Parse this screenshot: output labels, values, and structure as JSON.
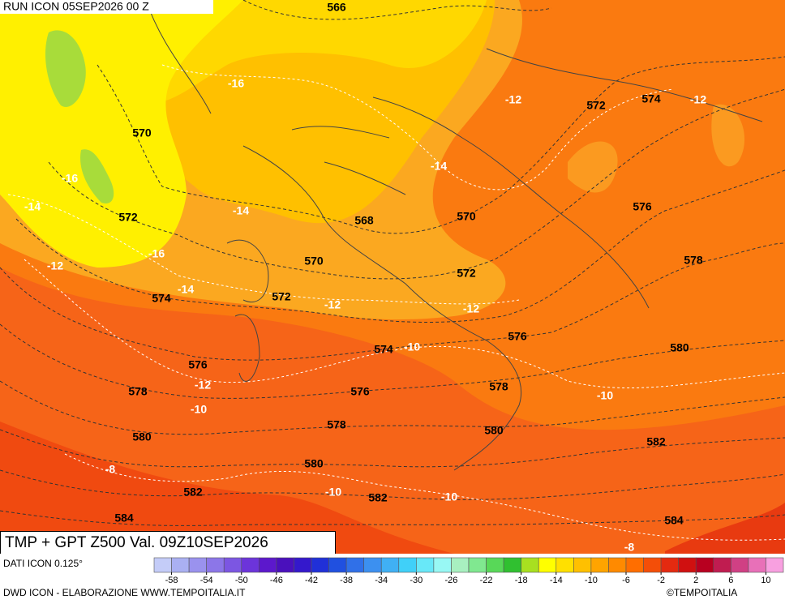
{
  "header": {
    "run": "RUN ICON 05SEP2026 00 Z",
    "title": "TMP + GPT Z500 Val. 09Z10SEP2026"
  },
  "map": {
    "height_labels": [
      566,
      570,
      572,
      574,
      576,
      578,
      580,
      582,
      584,
      568,
      570,
      572,
      570,
      572,
      574,
      576,
      578,
      580,
      582,
      576,
      578,
      580,
      572,
      574,
      576,
      578,
      580,
      582,
      584
    ],
    "temp_labels": [
      -16,
      -16,
      -14,
      -14,
      -12,
      -16,
      -14,
      -12,
      -12,
      -10,
      -8,
      -10,
      -10,
      -10,
      -12,
      -14,
      -12,
      -12,
      -10,
      -8
    ]
  },
  "colorbar": {
    "source": "DATI ICON 0.125°",
    "range": [
      -60,
      12
    ],
    "ticks": [
      -58,
      -54,
      -50,
      -46,
      -42,
      -38,
      -34,
      -30,
      -26,
      -22,
      -18,
      -14,
      -10,
      -6,
      -2,
      2,
      6,
      10
    ],
    "colors": [
      "#c4ccf8",
      "#aab0f2",
      "#9a92ee",
      "#8c76e8",
      "#7c56e2",
      "#6c34da",
      "#5c18cc",
      "#4a10bc",
      "#3418cc",
      "#2030d8",
      "#2050e0",
      "#3070e8",
      "#3c90f0",
      "#40b0f4",
      "#40d0f8",
      "#68e8f8",
      "#98f8f4",
      "#a8f0c0",
      "#80e890",
      "#58d858",
      "#30c030",
      "#a8e020",
      "#ffff00",
      "#ffe000",
      "#ffc000",
      "#ffa400",
      "#ff8a00",
      "#ff6e00",
      "#f44e08",
      "#e42a10",
      "#d01010",
      "#b80020",
      "#c01c50",
      "#d04084",
      "#e870b8",
      "#f8a0e0"
    ]
  },
  "footer": {
    "credit": "DWD ICON - ELABORAZIONE WWW.TEMPOITALIA.IT",
    "copyright": "©TEMPOITALIA"
  }
}
